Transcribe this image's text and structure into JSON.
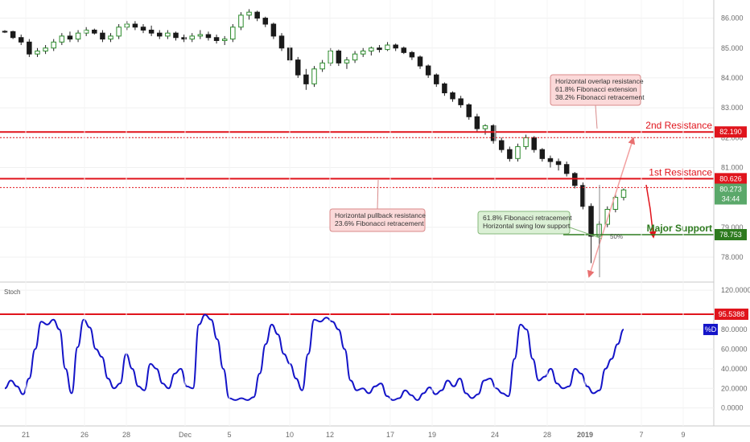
{
  "chart_data": [
    {
      "type": "candlestick",
      "title": "",
      "ylim": [
        77.3,
        86.5
      ],
      "y_ticks": [
        "86.000",
        "85.000",
        "84.000",
        "83.000",
        "82.000",
        "81.000",
        "79.000",
        "78.000"
      ],
      "x_ticks": [
        "21",
        "26",
        "28",
        "Dec",
        "5",
        "10",
        "12",
        "17",
        "19",
        "24",
        "28",
        "2019",
        "7",
        "9"
      ],
      "candles": [
        [
          85.56,
          85.6,
          85.5,
          85.55
        ],
        [
          85.55,
          85.58,
          85.3,
          85.35
        ],
        [
          85.35,
          85.45,
          85.1,
          85.2
        ],
        [
          85.2,
          85.3,
          84.7,
          84.8
        ],
        [
          84.8,
          85.0,
          84.7,
          84.9
        ],
        [
          84.9,
          85.1,
          84.8,
          85.0
        ],
        [
          85.0,
          85.3,
          84.9,
          85.2
        ],
        [
          85.2,
          85.5,
          85.1,
          85.4
        ],
        [
          85.4,
          85.55,
          85.2,
          85.3
        ],
        [
          85.3,
          85.6,
          85.2,
          85.5
        ],
        [
          85.5,
          85.7,
          85.4,
          85.6
        ],
        [
          85.6,
          85.65,
          85.45,
          85.5
        ],
        [
          85.5,
          85.6,
          85.2,
          85.3
        ],
        [
          85.3,
          85.5,
          85.2,
          85.4
        ],
        [
          85.4,
          85.8,
          85.3,
          85.7
        ],
        [
          85.7,
          85.9,
          85.6,
          85.8
        ],
        [
          85.8,
          85.9,
          85.6,
          85.7
        ],
        [
          85.7,
          85.8,
          85.5,
          85.6
        ],
        [
          85.6,
          85.75,
          85.4,
          85.5
        ],
        [
          85.5,
          85.6,
          85.3,
          85.4
        ],
        [
          85.4,
          85.6,
          85.3,
          85.5
        ],
        [
          85.5,
          85.55,
          85.25,
          85.35
        ],
        [
          85.35,
          85.45,
          85.2,
          85.3
        ],
        [
          85.3,
          85.5,
          85.2,
          85.4
        ],
        [
          85.4,
          85.6,
          85.3,
          85.45
        ],
        [
          85.45,
          85.55,
          85.25,
          85.35
        ],
        [
          85.35,
          85.45,
          85.15,
          85.25
        ],
        [
          85.25,
          85.4,
          85.1,
          85.3
        ],
        [
          85.3,
          85.8,
          85.2,
          85.7
        ],
        [
          85.7,
          86.2,
          85.6,
          86.1
        ],
        [
          86.1,
          86.3,
          85.95,
          86.2
        ],
        [
          86.2,
          86.25,
          85.9,
          86.0
        ],
        [
          86.0,
          86.05,
          85.7,
          85.8
        ],
        [
          85.8,
          85.85,
          85.3,
          85.4
        ],
        [
          85.4,
          85.5,
          84.9,
          85.0
        ],
        [
          85.0,
          85.1,
          84.5,
          84.6
        ],
        [
          84.6,
          84.7,
          84.0,
          84.1
        ],
        [
          84.1,
          84.3,
          83.6,
          83.8
        ],
        [
          83.8,
          84.4,
          83.7,
          84.3
        ],
        [
          84.3,
          84.6,
          84.2,
          84.5
        ],
        [
          84.5,
          85.0,
          84.4,
          84.9
        ],
        [
          84.9,
          84.95,
          84.4,
          84.5
        ],
        [
          84.5,
          84.7,
          84.3,
          84.6
        ],
        [
          84.6,
          84.9,
          84.5,
          84.8
        ],
        [
          84.8,
          85.0,
          84.7,
          84.9
        ],
        [
          84.9,
          85.05,
          84.75,
          85.0
        ],
        [
          85.0,
          85.1,
          84.85,
          84.95
        ],
        [
          84.95,
          85.2,
          84.9,
          85.1
        ],
        [
          85.1,
          85.15,
          84.9,
          85.0
        ],
        [
          85.0,
          85.05,
          84.8,
          84.85
        ],
        [
          84.85,
          84.9,
          84.6,
          84.7
        ],
        [
          84.7,
          84.75,
          84.3,
          84.4
        ],
        [
          84.4,
          84.45,
          84.0,
          84.1
        ],
        [
          84.1,
          84.15,
          83.7,
          83.8
        ],
        [
          83.8,
          83.85,
          83.4,
          83.5
        ],
        [
          83.5,
          83.55,
          83.2,
          83.3
        ],
        [
          83.3,
          83.4,
          83.0,
          83.1
        ],
        [
          83.1,
          83.15,
          82.6,
          82.7
        ],
        [
          82.7,
          82.8,
          82.2,
          82.3
        ],
        [
          82.3,
          82.45,
          82.1,
          82.4
        ],
        [
          82.4,
          82.45,
          81.8,
          81.9
        ],
        [
          81.9,
          82.0,
          81.5,
          81.6
        ],
        [
          81.6,
          81.7,
          81.2,
          81.3
        ],
        [
          81.3,
          81.8,
          81.2,
          81.7
        ],
        [
          81.7,
          82.1,
          81.6,
          82.0
        ],
        [
          82.0,
          82.05,
          81.5,
          81.6
        ],
        [
          81.6,
          81.65,
          81.2,
          81.3
        ],
        [
          81.3,
          81.4,
          81.0,
          81.2
        ],
        [
          81.2,
          81.3,
          80.9,
          81.1
        ],
        [
          81.1,
          81.2,
          80.7,
          80.8
        ],
        [
          80.8,
          80.85,
          80.3,
          80.4
        ],
        [
          80.4,
          80.5,
          79.6,
          79.7
        ],
        [
          79.7,
          79.8,
          77.8,
          78.7
        ],
        [
          78.7,
          79.2,
          78.4,
          79.1
        ],
        [
          79.1,
          79.7,
          79.0,
          79.6
        ],
        [
          79.6,
          80.1,
          79.5,
          80.0
        ],
        [
          80.0,
          80.3,
          79.9,
          80.25
        ]
      ],
      "levels": [
        {
          "label": "2nd Resistance",
          "value": 82.19,
          "badge": "82.190",
          "color": "#e0141c"
        },
        {
          "label": "1st Resistance",
          "value": 80.626,
          "badge": "80.626",
          "color": "#e0141c"
        },
        {
          "label": "Major Support",
          "value": 78.753,
          "badge": "78.753",
          "color": "#2d7a1e"
        }
      ],
      "dotted_levels": [
        82.0,
        80.33
      ],
      "last_price_badge": "80.273",
      "countdown": "34:44",
      "fib_label": "50%",
      "annotations": [
        {
          "lines": [
            "Horizontal overlap resistance",
            "61.8% Fibonacci extension",
            "38.2% Fibonacci retracement"
          ]
        },
        {
          "lines": [
            "Horizontal pullback resistance",
            "23.6% Fibonacci retracement"
          ]
        },
        {
          "lines": [
            "61.8% Fibonacci retracement",
            "Horizontal swing low support"
          ]
        }
      ]
    },
    {
      "type": "line",
      "title": "Stoch",
      "ylim": [
        -15,
        125
      ],
      "y_ticks": [
        "120.0000",
        "80.0000",
        "60.0000",
        "40.0000",
        "20.0000",
        "0.0000"
      ],
      "series": [
        {
          "name": "%D",
          "color": "#1414c8",
          "values": [
            20,
            28,
            22,
            14,
            30,
            60,
            88,
            85,
            90,
            80,
            40,
            15,
            62,
            90,
            82,
            60,
            52,
            30,
            20,
            25,
            55,
            40,
            22,
            18,
            45,
            40,
            25,
            20,
            35,
            40,
            22,
            20,
            85,
            95,
            90,
            70,
            40,
            10,
            8,
            10,
            8,
            11,
            35,
            65,
            85,
            75,
            55,
            45,
            30,
            18,
            55,
            90,
            88,
            92,
            88,
            80,
            60,
            28,
            18,
            20,
            15,
            22,
            25,
            12,
            8,
            10,
            18,
            13,
            8,
            15,
            21,
            14,
            18,
            28,
            22,
            30,
            15,
            10,
            14,
            28,
            30,
            20,
            15,
            12,
            50,
            85,
            80,
            50,
            28,
            32,
            40,
            25,
            20,
            22,
            40,
            35,
            22,
            15,
            18,
            40,
            50,
            65,
            80
          ]
        }
      ],
      "levels": [
        {
          "value": 95.5388,
          "badge": "95.5388",
          "color": "#e0141c"
        }
      ],
      "last_badge": "%D"
    }
  ]
}
